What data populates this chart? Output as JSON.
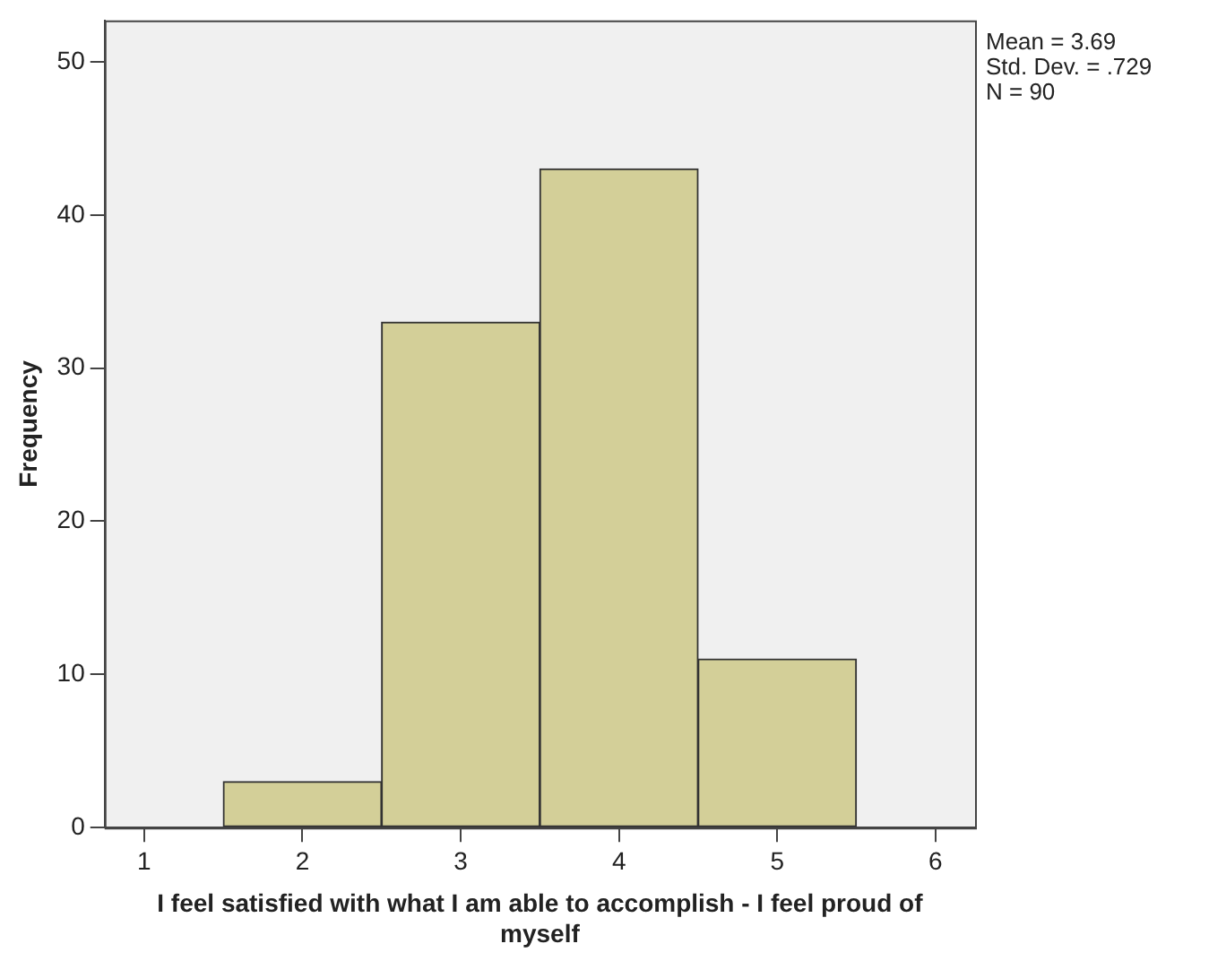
{
  "chart_data": {
    "type": "histogram",
    "xlabel": "I feel satisfied with what I am able to accomplish - I feel proud of myself",
    "ylabel": "Frequency",
    "bins": [
      1.5,
      2.5,
      3.5,
      4.5,
      5.5
    ],
    "values": [
      3,
      33,
      43,
      11
    ],
    "color": "#d3cf98",
    "xlim": [
      0.75,
      6.25
    ],
    "xticks": [
      1,
      2,
      3,
      4,
      5,
      6
    ],
    "ylim": [
      0,
      52.7
    ],
    "yticks": [
      0,
      10,
      20,
      30,
      40,
      50
    ],
    "grid": false,
    "legend": false,
    "annotations": [
      "Mean = 3.69",
      "Std. Dev. = .729",
      "N = 90"
    ]
  }
}
